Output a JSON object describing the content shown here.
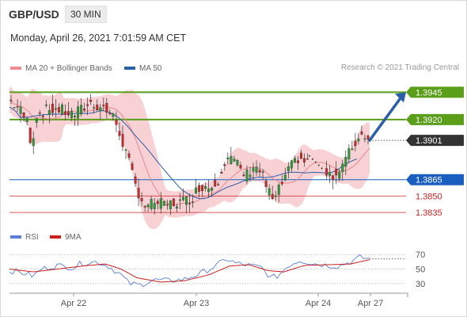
{
  "header": {
    "symbol": "GBP/USD",
    "timeframe": "30 MIN"
  },
  "datetime": "Monday, April 26, 2021 7:01:59 AM CET",
  "credit": "Research © 2021 Trading Central",
  "colors": {
    "resistance": "#5a9e1a",
    "support": "#1a5fbf",
    "pivot": "#333333",
    "support_red": "#cc2222",
    "bollinger": "#f6c9cc",
    "ma20": "#e8888f",
    "ma50": "#2b5fa8",
    "arrow": "#2b5fa8",
    "up": "#2e9a36",
    "down": "#cc2a2a",
    "rsi": "#5b7fd6",
    "rsi_ma": "#cc1f1f"
  },
  "chart_data": [
    {
      "type": "candlestick",
      "title": "",
      "legend": [
        {
          "name": "MA 20 + Bollinger Bands",
          "color": "#e8888f"
        },
        {
          "name": "MA 50",
          "color": "#2b5fa8"
        }
      ],
      "legend_position": "top-left",
      "x_labels": [
        "Apr 22",
        "Apr 23",
        "Apr 24",
        "Apr 27"
      ],
      "ylim": [
        1.3822,
        1.3954
      ],
      "levels": [
        {
          "value": 1.3945,
          "label": "1.3945",
          "kind": "resistance"
        },
        {
          "value": 1.392,
          "label": "1.3920",
          "kind": "resistance"
        },
        {
          "value": 1.3901,
          "label": "1.3901",
          "kind": "pivot"
        },
        {
          "value": 1.3865,
          "label": "1.3865",
          "kind": "support"
        },
        {
          "value": 1.385,
          "label": "1.3850",
          "kind": "support_red"
        },
        {
          "value": 1.3835,
          "label": "1.3835",
          "kind": "support_red"
        }
      ],
      "close_path": [
        [
          0,
          1.3938
        ],
        [
          6,
          1.393
        ],
        [
          11,
          1.3918
        ],
        [
          14,
          1.3896
        ],
        [
          17,
          1.3925
        ],
        [
          22,
          1.3928
        ],
        [
          28,
          1.393
        ],
        [
          34,
          1.3928
        ],
        [
          40,
          1.3924
        ],
        [
          45,
          1.3929
        ],
        [
          50,
          1.3935
        ],
        [
          54,
          1.3934
        ],
        [
          60,
          1.393
        ],
        [
          66,
          1.392
        ],
        [
          70,
          1.3904
        ],
        [
          75,
          1.388
        ],
        [
          79,
          1.386
        ],
        [
          82,
          1.385
        ],
        [
          86,
          1.3838
        ],
        [
          91,
          1.3845
        ],
        [
          97,
          1.3841
        ],
        [
          104,
          1.3844
        ],
        [
          110,
          1.3845
        ],
        [
          115,
          1.385
        ],
        [
          120,
          1.386
        ],
        [
          126,
          1.3858
        ],
        [
          131,
          1.3866
        ],
        [
          134,
          1.388
        ],
        [
          137,
          1.3886
        ],
        [
          142,
          1.388
        ],
        [
          148,
          1.3868
        ],
        [
          153,
          1.3878
        ],
        [
          158,
          1.3872
        ],
        [
          162,
          1.3855
        ],
        [
          166,
          1.3845
        ],
        [
          171,
          1.3862
        ],
        [
          176,
          1.3875
        ],
        [
          181,
          1.3885
        ],
        [
          188,
          1.388
        ],
        [
          194,
          1.3876
        ],
        [
          200,
          1.3872
        ],
        [
          205,
          1.3869
        ],
        [
          210,
          1.388
        ],
        [
          214,
          1.3892
        ],
        [
          218,
          1.3902
        ],
        [
          222,
          1.3907
        ],
        [
          226,
          1.3904
        ]
      ],
      "forecast_arrow": {
        "from": [
          226,
          1.3901
        ],
        "to": [
          248,
          1.3945
        ]
      }
    },
    {
      "type": "line",
      "title": "",
      "legend": [
        {
          "name": "RSI",
          "color": "#5b7fd6"
        },
        {
          "name": "9MA",
          "color": "#cc1f1f"
        }
      ],
      "ylim": [
        20,
        80
      ],
      "y_ticks": [
        30,
        50,
        70
      ],
      "y_tick_labels": [
        "30",
        "50",
        "70"
      ],
      "rsi_path": [
        [
          0,
          48
        ],
        [
          10,
          44
        ],
        [
          15,
          40
        ],
        [
          20,
          50
        ],
        [
          30,
          55
        ],
        [
          40,
          52
        ],
        [
          45,
          58
        ],
        [
          55,
          60
        ],
        [
          62,
          54
        ],
        [
          70,
          42
        ],
        [
          75,
          30
        ],
        [
          82,
          28
        ],
        [
          90,
          35
        ],
        [
          100,
          34
        ],
        [
          110,
          36
        ],
        [
          120,
          44
        ],
        [
          130,
          55
        ],
        [
          136,
          64
        ],
        [
          142,
          58
        ],
        [
          150,
          55
        ],
        [
          158,
          52
        ],
        [
          164,
          38
        ],
        [
          168,
          40
        ],
        [
          175,
          55
        ],
        [
          182,
          62
        ],
        [
          190,
          58
        ],
        [
          200,
          55
        ],
        [
          206,
          54
        ],
        [
          214,
          60
        ],
        [
          220,
          66
        ],
        [
          226,
          64
        ]
      ],
      "rsi_ma_path": [
        [
          0,
          50
        ],
        [
          15,
          46
        ],
        [
          30,
          50
        ],
        [
          45,
          54
        ],
        [
          60,
          57
        ],
        [
          70,
          50
        ],
        [
          80,
          38
        ],
        [
          95,
          32
        ],
        [
          110,
          34
        ],
        [
          125,
          42
        ],
        [
          138,
          54
        ],
        [
          150,
          56
        ],
        [
          162,
          48
        ],
        [
          172,
          46
        ],
        [
          185,
          55
        ],
        [
          200,
          56
        ],
        [
          214,
          57
        ],
        [
          226,
          63
        ]
      ]
    }
  ]
}
